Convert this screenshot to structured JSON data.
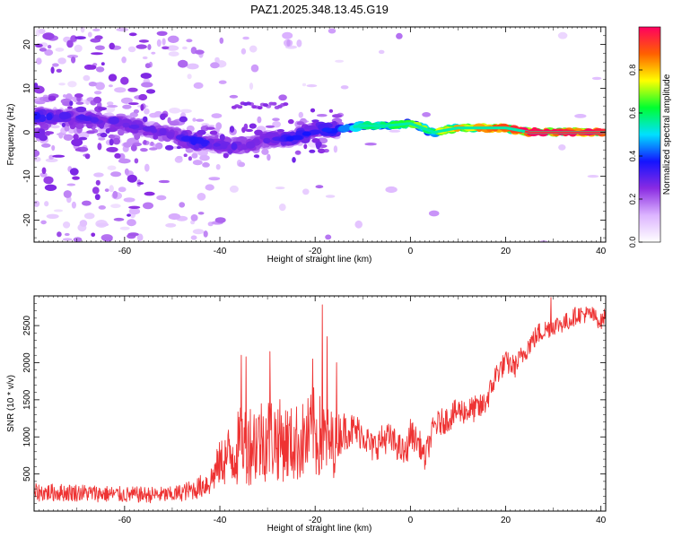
{
  "figure_title": "PAZ1.2025.348.13.45.G19",
  "chart_data": [
    {
      "type": "heatmap",
      "xlabel": "Height of straight line (km)",
      "ylabel": "Frequency (Hz)",
      "xlim": [
        -79,
        41
      ],
      "ylim": [
        -25,
        24
      ],
      "xticks": [
        -60,
        -40,
        -20,
        0,
        20,
        40
      ],
      "xtick_labels": [
        "-60",
        "-40",
        "-20",
        "0",
        "20",
        "40"
      ],
      "yticks": [
        -20,
        -10,
        0,
        10,
        20
      ],
      "ytick_labels": [
        "-20",
        "-10",
        "0",
        "10",
        "20"
      ],
      "colorbar": {
        "label": "Normalized spectral amplitude",
        "range": [
          0,
          1
        ],
        "ticks": [
          0,
          0.2,
          0.4,
          0.6,
          0.8
        ],
        "tick_labels": [
          "0.0",
          "0.2",
          "0.4",
          "0.6",
          "0.8"
        ],
        "stops": [
          "#ffffff",
          "#dcb4ff",
          "#8a2be2",
          "#1414ff",
          "#00e0ff",
          "#00ff30",
          "#ffff00",
          "#ff6000",
          "#ff0060"
        ]
      },
      "ridge": {
        "description": "frequency of main spectral component vs height",
        "height_km": [
          -79,
          -70,
          -60,
          -50,
          -45,
          -40,
          -35,
          -30,
          -25,
          -20,
          -15,
          -10,
          -5,
          0,
          5,
          10,
          15,
          20,
          25,
          30,
          35,
          40,
          41
        ],
        "frequency_hz": [
          3.5,
          3.5,
          2.0,
          -0.5,
          -2.0,
          -3.0,
          -3.0,
          -1.5,
          -1.5,
          0.5,
          0.8,
          1.5,
          1.5,
          2.0,
          0.0,
          1.0,
          1.0,
          1.0,
          0.0,
          0.0,
          0.0,
          0.0,
          0.0
        ],
        "amplitude": [
          0.35,
          0.3,
          0.3,
          0.28,
          0.35,
          0.3,
          0.3,
          0.3,
          0.35,
          0.35,
          0.4,
          0.55,
          0.6,
          0.65,
          0.7,
          0.78,
          0.82,
          0.85,
          0.95,
          0.97,
          0.98,
          0.98,
          0.98
        ]
      }
    },
    {
      "type": "line",
      "xlabel": "Height of straight line (km)",
      "ylabel": "SNR (10 * v/v)",
      "xlim": [
        -79,
        41
      ],
      "ylim": [
        0,
        2900
      ],
      "xticks": [
        -60,
        -40,
        -20,
        0,
        20,
        40
      ],
      "xtick_labels": [
        "-60",
        "-40",
        "-20",
        "0",
        "20",
        "40"
      ],
      "yticks": [
        500,
        1000,
        1500,
        2000,
        2500
      ],
      "ytick_labels": [
        "500",
        "1000",
        "1500",
        "2000",
        "2500"
      ],
      "series": [
        {
          "name": "SNR",
          "color": "#ee3333",
          "envelope_x": [
            -79,
            -70,
            -60,
            -50,
            -45,
            -42,
            -40,
            -37,
            -35,
            -32,
            -30,
            -27,
            -25,
            -22,
            -20,
            -18,
            -16,
            -15,
            -13,
            -10,
            -8,
            -5,
            -3,
            -1,
            0,
            2,
            3,
            5,
            8,
            10,
            12,
            15,
            16,
            17,
            18,
            20,
            22,
            25,
            27,
            30,
            33,
            35,
            38,
            40,
            41
          ],
          "envelope_y": [
            250,
            250,
            220,
            220,
            300,
            400,
            650,
            800,
            900,
            950,
            1000,
            950,
            900,
            950,
            1050,
            950,
            900,
            1050,
            1100,
            1050,
            850,
            1000,
            900,
            750,
            1050,
            900,
            700,
            1150,
            1250,
            1350,
            1350,
            1400,
            1500,
            1650,
            1850,
            2000,
            1950,
            2250,
            2400,
            2500,
            2550,
            2650,
            2650,
            2550,
            2650
          ],
          "noise_amp": [
            120,
            120,
            110,
            110,
            140,
            200,
            300,
            500,
            550,
            600,
            600,
            550,
            520,
            550,
            650,
            500,
            450,
            300,
            250,
            220,
            200,
            220,
            200,
            200,
            200,
            180,
            180,
            180,
            180,
            180,
            180,
            180,
            180,
            170,
            160,
            160,
            150,
            150,
            150,
            130,
            130,
            120,
            120,
            110,
            110
          ],
          "spikes": [
            {
              "x": -35.5,
              "y": 2100
            },
            {
              "x": -34.5,
              "y": 2080
            },
            {
              "x": -29.5,
              "y": 2150
            },
            {
              "x": -20.5,
              "y": 2050
            },
            {
              "x": -18.5,
              "y": 2780
            },
            {
              "x": -17.5,
              "y": 2350
            },
            {
              "x": -15.5,
              "y": 2000
            },
            {
              "x": 29.5,
              "y": 2880
            }
          ]
        }
      ]
    }
  ]
}
